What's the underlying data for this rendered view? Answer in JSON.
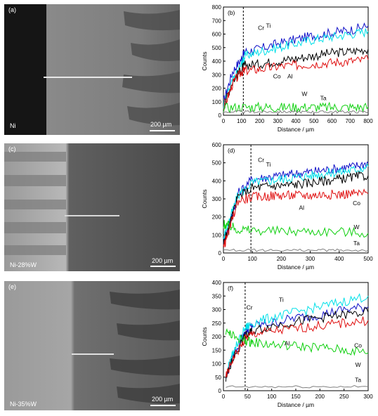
{
  "micrographs": [
    {
      "panel": "(a)",
      "label": "Ni",
      "scale": "200 µm"
    },
    {
      "panel": "(c)",
      "label": "Ni-28%W",
      "scale": "200 µm"
    },
    {
      "panel": "(e)",
      "label": "Ni-35%W",
      "scale": "200 µm"
    }
  ],
  "colors": {
    "Cr": "#1010c8",
    "Ti": "#00e0e8",
    "Co": "#e01010",
    "Al": "#000000",
    "W": "#10d010",
    "Ta": "#808080"
  },
  "chart_data": [
    {
      "type": "line",
      "panel": "(b)",
      "xlabel": "Distance / µm",
      "ylabel": "Counts",
      "xlim": [
        0,
        800
      ],
      "ylim": [
        0,
        800
      ],
      "xticks": [
        0,
        100,
        200,
        300,
        400,
        500,
        600,
        700,
        800
      ],
      "yticks": [
        0,
        100,
        200,
        300,
        400,
        500,
        600,
        700,
        800
      ],
      "interface_x": 110,
      "series": [
        {
          "name": "Cr",
          "x": [
            0,
            50,
            100,
            120,
            200,
            300,
            400,
            500,
            600,
            700,
            800
          ],
          "values": [
            100,
            320,
            420,
            470,
            490,
            530,
            560,
            590,
            610,
            630,
            660
          ]
        },
        {
          "name": "Ti",
          "x": [
            0,
            50,
            100,
            120,
            200,
            300,
            400,
            500,
            600,
            700,
            800
          ],
          "values": [
            70,
            250,
            380,
            440,
            470,
            500,
            530,
            560,
            580,
            600,
            620
          ]
        },
        {
          "name": "Al",
          "x": [
            0,
            50,
            100,
            120,
            200,
            300,
            400,
            500,
            600,
            700,
            800
          ],
          "values": [
            60,
            250,
            340,
            370,
            380,
            400,
            420,
            440,
            460,
            470,
            490
          ]
        },
        {
          "name": "Co",
          "x": [
            0,
            50,
            100,
            120,
            200,
            300,
            400,
            500,
            600,
            700,
            800
          ],
          "values": [
            50,
            230,
            320,
            330,
            340,
            360,
            370,
            380,
            390,
            400,
            410
          ]
        },
        {
          "name": "W",
          "x": [
            0,
            100,
            200,
            300,
            400,
            500,
            600,
            700,
            800
          ],
          "values": [
            55,
            60,
            60,
            58,
            60,
            60,
            58,
            60,
            60
          ]
        },
        {
          "name": "Ta",
          "x": [
            0,
            100,
            200,
            300,
            400,
            500,
            600,
            700,
            800
          ],
          "values": [
            25,
            25,
            25,
            25,
            25,
            25,
            25,
            25,
            25
          ]
        }
      ],
      "annotations": [
        "Cr",
        "Ti",
        "Co",
        "Al",
        "W",
        "Ta"
      ]
    },
    {
      "type": "line",
      "panel": "(d)",
      "xlabel": "Distance / µm",
      "ylabel": "Counts",
      "xlim": [
        0,
        500
      ],
      "ylim": [
        0,
        600
      ],
      "xticks": [
        0,
        100,
        200,
        300,
        400,
        500
      ],
      "yticks": [
        0,
        100,
        200,
        300,
        400,
        500,
        600
      ],
      "interface_x": 95,
      "series": [
        {
          "name": "Cr",
          "x": [
            0,
            20,
            50,
            100,
            150,
            200,
            250,
            300,
            350,
            400,
            450,
            500
          ],
          "values": [
            60,
            150,
            330,
            410,
            420,
            430,
            440,
            450,
            460,
            470,
            480,
            500
          ]
        },
        {
          "name": "Ti",
          "x": [
            0,
            20,
            50,
            100,
            150,
            200,
            250,
            300,
            350,
            400,
            450,
            500
          ],
          "values": [
            80,
            180,
            320,
            390,
            400,
            410,
            420,
            430,
            440,
            450,
            460,
            480
          ]
        },
        {
          "name": "Al",
          "x": [
            0,
            20,
            50,
            100,
            150,
            200,
            250,
            300,
            350,
            400,
            450,
            500
          ],
          "values": [
            50,
            150,
            310,
            360,
            370,
            375,
            380,
            390,
            400,
            410,
            420,
            430
          ]
        },
        {
          "name": "Co",
          "x": [
            0,
            20,
            50,
            100,
            150,
            200,
            250,
            300,
            350,
            400,
            450,
            500
          ],
          "values": [
            30,
            130,
            290,
            310,
            315,
            320,
            320,
            320,
            325,
            325,
            330,
            330
          ]
        },
        {
          "name": "W",
          "x": [
            0,
            20,
            50,
            100,
            200,
            300,
            400,
            500
          ],
          "values": [
            160,
            150,
            130,
            125,
            120,
            120,
            118,
            110
          ]
        },
        {
          "name": "Ta",
          "x": [
            0,
            100,
            200,
            300,
            400,
            500
          ],
          "values": [
            15,
            15,
            15,
            15,
            15,
            15
          ]
        }
      ],
      "annotations": [
        "Cr",
        "Ti",
        "Co",
        "Al",
        "W",
        "Ta"
      ]
    },
    {
      "type": "line",
      "panel": "(f)",
      "xlabel": "Distance / µm",
      "ylabel": "Counts",
      "xlim": [
        0,
        300
      ],
      "ylim": [
        0,
        400
      ],
      "xticks": [
        0,
        50,
        100,
        150,
        200,
        250,
        300
      ],
      "yticks": [
        0,
        50,
        100,
        150,
        200,
        250,
        300,
        350,
        400
      ],
      "interface_x": 45,
      "series": [
        {
          "name": "Cr",
          "x": [
            5,
            20,
            45,
            60,
            100,
            150,
            200,
            250,
            300
          ],
          "values": [
            50,
            130,
            220,
            240,
            250,
            270,
            280,
            300,
            310
          ]
        },
        {
          "name": "Ti",
          "x": [
            5,
            20,
            45,
            60,
            100,
            150,
            200,
            250,
            300
          ],
          "values": [
            60,
            140,
            230,
            250,
            270,
            290,
            310,
            330,
            350
          ]
        },
        {
          "name": "Al",
          "x": [
            5,
            20,
            45,
            60,
            100,
            150,
            200,
            250,
            300
          ],
          "values": [
            40,
            120,
            200,
            220,
            240,
            255,
            270,
            280,
            290
          ]
        },
        {
          "name": "Co",
          "x": [
            5,
            20,
            45,
            60,
            100,
            150,
            200,
            250,
            300
          ],
          "values": [
            50,
            120,
            190,
            210,
            220,
            230,
            240,
            250,
            260
          ]
        },
        {
          "name": "W",
          "x": [
            5,
            20,
            45,
            60,
            100,
            150,
            200,
            250,
            300
          ],
          "values": [
            220,
            200,
            185,
            180,
            170,
            165,
            160,
            150,
            140
          ]
        },
        {
          "name": "Ta",
          "x": [
            5,
            100,
            200,
            300
          ],
          "values": [
            15,
            15,
            15,
            15
          ]
        }
      ],
      "annotations": [
        "Cr",
        "Ti",
        "Co",
        "Al",
        "W",
        "Ta"
      ]
    }
  ]
}
